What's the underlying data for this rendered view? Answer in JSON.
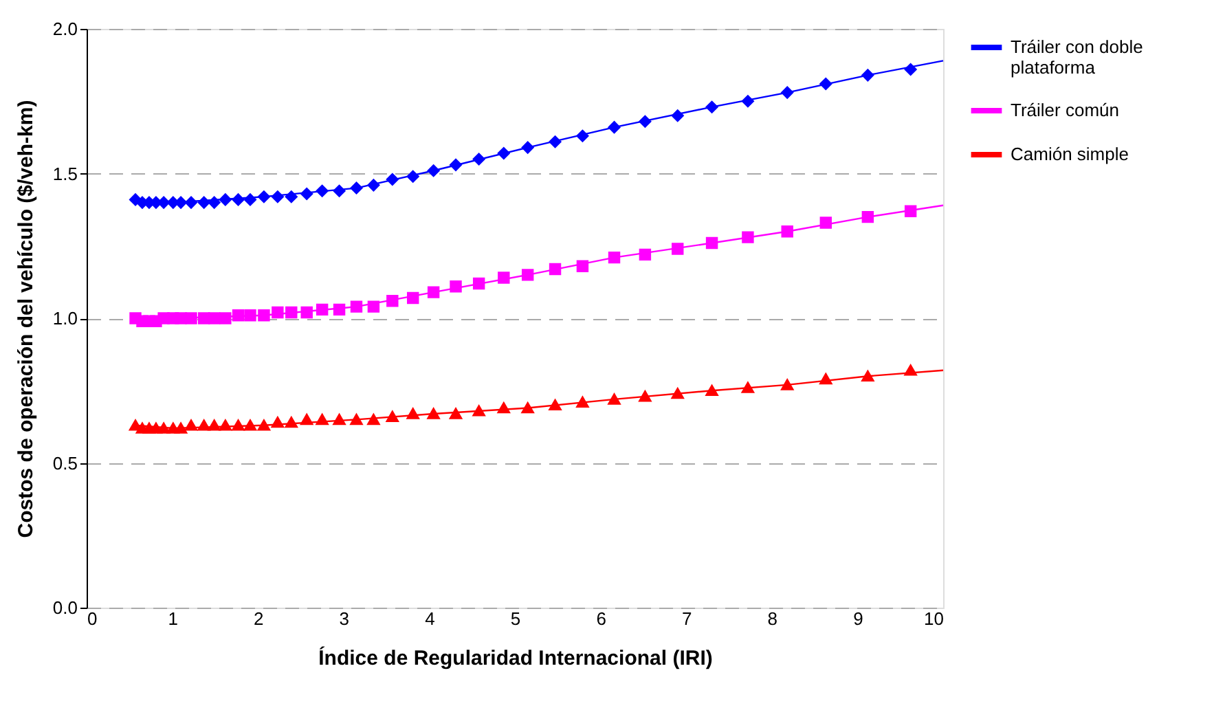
{
  "chart_data": {
    "type": "scatter",
    "xlabel": "Índice de Regularidad Internacional (IRI)",
    "ylabel": "Costos de operación del vehículo ($/veh-km)",
    "x": [
      0.57,
      0.65,
      0.73,
      0.81,
      0.9,
      1.01,
      1.1,
      1.22,
      1.37,
      1.49,
      1.62,
      1.77,
      1.91,
      2.07,
      2.23,
      2.39,
      2.57,
      2.75,
      2.95,
      3.15,
      3.35,
      3.57,
      3.81,
      4.05,
      4.31,
      4.58,
      4.87,
      5.15,
      5.47,
      5.79,
      6.16,
      6.52,
      6.9,
      7.3,
      7.72,
      8.18,
      8.63,
      9.12,
      9.62
    ],
    "series": [
      {
        "name": "Tráiler con doble plataforma",
        "color": "#0000ff",
        "marker": "diamond",
        "values": [
          1.41,
          1.4,
          1.4,
          1.4,
          1.4,
          1.4,
          1.4,
          1.4,
          1.4,
          1.4,
          1.41,
          1.41,
          1.41,
          1.42,
          1.42,
          1.42,
          1.43,
          1.44,
          1.44,
          1.45,
          1.46,
          1.48,
          1.49,
          1.51,
          1.53,
          1.55,
          1.57,
          1.59,
          1.61,
          1.63,
          1.66,
          1.68,
          1.7,
          1.73,
          1.75,
          1.78,
          1.81,
          1.84,
          1.86
        ]
      },
      {
        "name": "Tráiler común",
        "color": "#ff00ff",
        "marker": "square",
        "values": [
          1.0,
          0.99,
          0.99,
          0.99,
          1.0,
          1.0,
          1.0,
          1.0,
          1.0,
          1.0,
          1.0,
          1.01,
          1.01,
          1.01,
          1.02,
          1.02,
          1.02,
          1.03,
          1.03,
          1.04,
          1.04,
          1.06,
          1.07,
          1.09,
          1.11,
          1.12,
          1.14,
          1.15,
          1.17,
          1.18,
          1.21,
          1.22,
          1.24,
          1.26,
          1.28,
          1.3,
          1.33,
          1.35,
          1.37
        ]
      },
      {
        "name": "Camión simple",
        "color": "#ff0000",
        "marker": "triangle",
        "values": [
          0.63,
          0.62,
          0.62,
          0.62,
          0.62,
          0.62,
          0.62,
          0.63,
          0.63,
          0.63,
          0.63,
          0.63,
          0.63,
          0.63,
          0.64,
          0.64,
          0.65,
          0.65,
          0.65,
          0.65,
          0.65,
          0.66,
          0.67,
          0.67,
          0.67,
          0.68,
          0.69,
          0.69,
          0.7,
          0.71,
          0.72,
          0.73,
          0.74,
          0.75,
          0.76,
          0.77,
          0.79,
          0.8,
          0.82
        ]
      },
      {
        "type": "line",
        "color": "#0000ff",
        "marker": "none",
        "x": [
          0.57,
          1.01,
          2.07,
          3.15,
          4.05,
          5.15,
          6.16,
          7.3,
          8.18,
          9.12,
          10
        ],
        "values": [
          1.41,
          1.4,
          1.42,
          1.45,
          1.51,
          1.59,
          1.66,
          1.73,
          1.78,
          1.84,
          1.89
        ]
      },
      {
        "type": "line",
        "color": "#ff00ff",
        "marker": "none",
        "x": [
          0.57,
          1.01,
          2.07,
          3.15,
          4.05,
          5.15,
          6.16,
          7.3,
          8.18,
          9.12,
          10
        ],
        "values": [
          1.0,
          1.0,
          1.01,
          1.04,
          1.09,
          1.15,
          1.21,
          1.26,
          1.3,
          1.35,
          1.39
        ]
      },
      {
        "type": "line",
        "color": "#ff0000",
        "marker": "none",
        "x": [
          0.57,
          1.01,
          2.07,
          3.15,
          4.05,
          5.15,
          6.16,
          7.3,
          8.18,
          9.12,
          10
        ],
        "values": [
          0.63,
          0.62,
          0.63,
          0.65,
          0.67,
          0.69,
          0.72,
          0.75,
          0.77,
          0.8,
          0.82
        ]
      }
    ],
    "xlim": [
      0,
      10
    ],
    "xticks": [
      0,
      1,
      2,
      3,
      4,
      5,
      6,
      7,
      8,
      9,
      10
    ],
    "ylim": [
      0,
      2
    ],
    "yticks": [
      {
        "value": 0,
        "label": "0.0"
      },
      {
        "value": 0.5,
        "label": "0.5"
      },
      {
        "value": 1,
        "label": "1.0"
      },
      {
        "value": 1.5,
        "label": "1.5"
      },
      {
        "value": 2,
        "label": "2.0"
      }
    ],
    "grid": "y",
    "legend": "top right",
    "line_style": "solid"
  }
}
